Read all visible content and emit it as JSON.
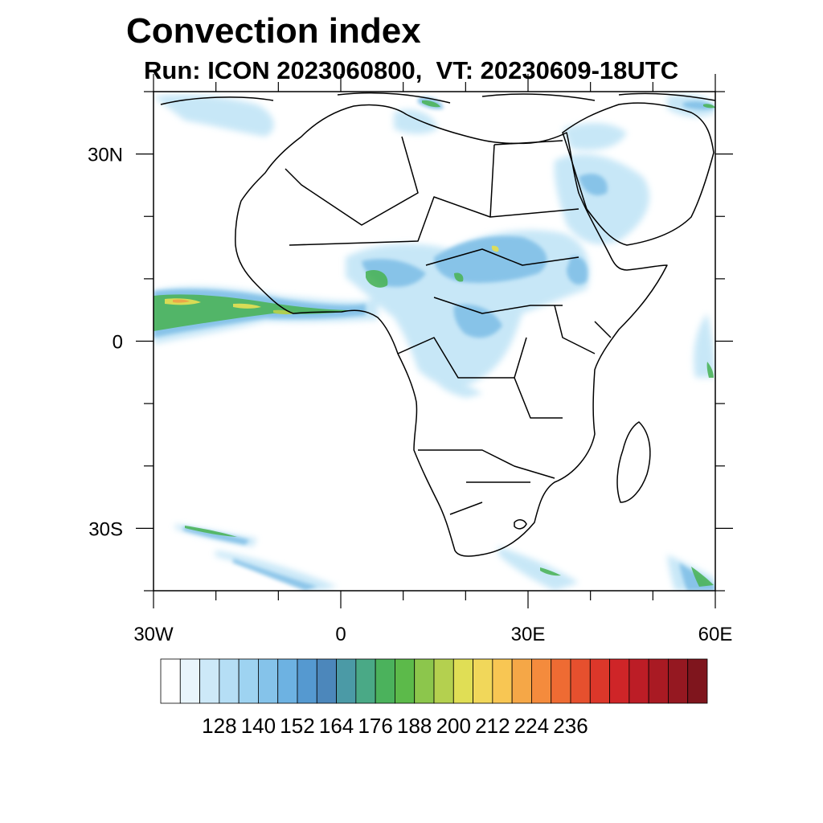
{
  "title": "Convection index",
  "subtitle": "Run: ICON 2023060800,  VT: 20230609-18UTC",
  "map": {
    "lon_range": [
      -30,
      60
    ],
    "lat_range": [
      -40,
      40
    ],
    "lat_ticks": [
      {
        "value": 30,
        "label": "30N"
      },
      {
        "value": 0,
        "label": "0"
      },
      {
        "value": -30,
        "label": "30S"
      }
    ],
    "lon_ticks": [
      {
        "value": -30,
        "label": "30W"
      },
      {
        "value": 0,
        "label": "0"
      },
      {
        "value": 30,
        "label": "30E"
      },
      {
        "value": 60,
        "label": "60E"
      }
    ]
  },
  "colorbar": {
    "labels": [
      "128",
      "140",
      "152",
      "164",
      "176",
      "188",
      "200",
      "212",
      "224",
      "236"
    ],
    "colors": [
      "#ffffff",
      "#e9f5fc",
      "#cde9f8",
      "#b5def5",
      "#9ed3f1",
      "#85c3ea",
      "#6db2e2",
      "#5599d0",
      "#4c87bb",
      "#4b9aa6",
      "#4aa986",
      "#4bb25c",
      "#5cba4a",
      "#8cc64c",
      "#b4d04f",
      "#e0de55",
      "#f1d75a",
      "#f8c653",
      "#f5a747",
      "#f48b3d",
      "#ee6b33",
      "#e6502e",
      "#dc372a",
      "#cf2528",
      "#bc1d26",
      "#a91a23",
      "#951821",
      "#7f151d"
    ]
  }
}
